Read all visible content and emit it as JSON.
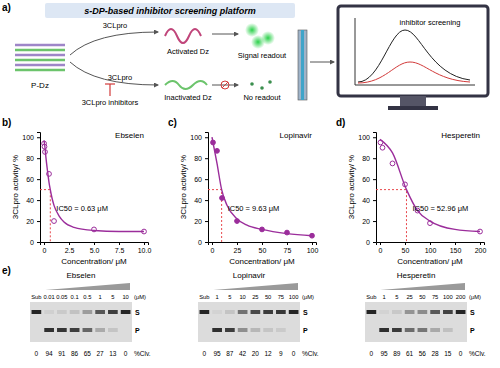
{
  "panel_labels": [
    "a)",
    "b)",
    "c)",
    "d)",
    "e)"
  ],
  "schematic": {
    "title": "s-DP-based inhibitor screening platform",
    "probe": "P-Dz",
    "enzyme": "3CLpro",
    "enzyme_lower": "3CLpro",
    "inhibitors": "3CLpro inhibitors",
    "active": "Activated Dz",
    "inactive": "Inactivated Dz",
    "signal": "Signal readout",
    "no_signal": "No readout",
    "screen": "inhibitor screening"
  },
  "chart_data": [
    {
      "type": "line",
      "title": "Ebselen",
      "xlabel": "Concentration/ μM",
      "ylabel": "3CLpro activity/ %",
      "xlim": [
        -0.4,
        10.4
      ],
      "ylim": [
        0,
        105
      ],
      "xticks": [
        0,
        2.5,
        {
          "value": 5,
          "label": "5.0"
        },
        7.5,
        {
          "value": 10,
          "label": "10.0"
        }
      ],
      "yticks": [
        0,
        20,
        40,
        60,
        80,
        100
      ],
      "series": [
        {
          "type": "scatter",
          "marker": "open-circle",
          "color": "#9b2d9b",
          "x": [
            0.01,
            0.05,
            0.1,
            0.5,
            1,
            5,
            10
          ],
          "values": [
            94,
            91,
            86,
            65,
            20,
            12,
            10
          ]
        },
        {
          "type": "line",
          "color": "#9b2d9b",
          "x": [
            0,
            0.1,
            0.2,
            0.35,
            0.5,
            0.63,
            0.8,
            1,
            1.5,
            2,
            3,
            5,
            7.5,
            10
          ],
          "values": [
            97,
            90,
            80,
            68,
            57,
            50,
            42,
            35,
            25,
            19,
            14,
            11,
            10,
            10
          ]
        }
      ],
      "annotation": {
        "text": "IC50 = 0.63 μM",
        "x": 0.63,
        "y": 50,
        "color": "#e8474c"
      }
    },
    {
      "type": "line",
      "title": "Lopinavir",
      "xlabel": "Concentration/ μM",
      "ylabel": "3CLpro activity/ %",
      "xlim": [
        -4,
        104
      ],
      "ylim": [
        0,
        105
      ],
      "xticks": [
        0,
        25,
        50,
        75,
        100
      ],
      "yticks": [
        0,
        20,
        40,
        60,
        80,
        100
      ],
      "series": [
        {
          "type": "scatter",
          "marker": "circle",
          "color": "#9b2d9b",
          "x": [
            1,
            5,
            10,
            25,
            50,
            75,
            100
          ],
          "values": [
            95,
            87,
            42,
            20,
            12,
            9,
            6
          ]
        },
        {
          "type": "line",
          "color": "#9b2d9b",
          "x": [
            0,
            5,
            9.63,
            15,
            25,
            35,
            50,
            75,
            100
          ],
          "values": [
            100,
            75,
            50,
            35,
            22,
            16,
            12,
            8,
            6
          ]
        }
      ],
      "annotation": {
        "text": "IC50 = 9.63 μM",
        "x": 9.63,
        "y": 50,
        "color": "#e8474c"
      }
    },
    {
      "type": "line",
      "title": "Hesperetin",
      "xlabel": "Concentration/ μM",
      "ylabel": "3CLpro activity/ %",
      "xlim": [
        -8,
        208
      ],
      "ylim": [
        0,
        105
      ],
      "xticks": [
        0,
        50,
        100,
        150,
        200
      ],
      "yticks": [
        0,
        20,
        40,
        60,
        80,
        100
      ],
      "series": [
        {
          "type": "scatter",
          "marker": "open-circle",
          "color": "#9b2d9b",
          "x": [
            1,
            5,
            25,
            50,
            75,
            100,
            200
          ],
          "values": [
            95,
            90,
            75,
            55,
            30,
            18,
            10
          ]
        },
        {
          "type": "line",
          "color": "#9b2d9b",
          "x": [
            0,
            25,
            52.96,
            75,
            100,
            150,
            200
          ],
          "values": [
            98,
            85,
            50,
            30,
            20,
            12,
            10
          ]
        }
      ],
      "annotation": {
        "text": "IC50 = 52.96 μM",
        "x": 52.96,
        "y": 50,
        "color": "#e8474c"
      }
    }
  ],
  "gels": [
    {
      "title": "Ebselen",
      "lanes": [
        "Sub",
        "0.01",
        "0.05",
        "0.1",
        "0.5",
        "1",
        "5",
        "10"
      ],
      "unit": "(μM)",
      "clv": [
        0,
        94,
        91,
        86,
        65,
        27,
        13,
        0
      ],
      "clv_label": "%Clv.",
      "bands": [
        "S",
        "P"
      ]
    },
    {
      "title": "Lopinavir",
      "lanes": [
        "Sub",
        "1",
        "5",
        "10",
        "25",
        "50",
        "75",
        "100"
      ],
      "unit": "(μM)",
      "clv": [
        0,
        95,
        87,
        42,
        20,
        12,
        9,
        0
      ],
      "clv_label": "%Clv.",
      "bands": [
        "S",
        "P"
      ]
    },
    {
      "title": "Hesperetin",
      "lanes": [
        "Sub",
        "1",
        "5",
        "25",
        "50",
        "75",
        "100",
        "200"
      ],
      "unit": "(μM)",
      "clv": [
        0,
        95,
        89,
        61,
        56,
        28,
        15,
        0
      ],
      "clv_label": "%Clv.",
      "bands": [
        "S",
        "P"
      ]
    }
  ]
}
